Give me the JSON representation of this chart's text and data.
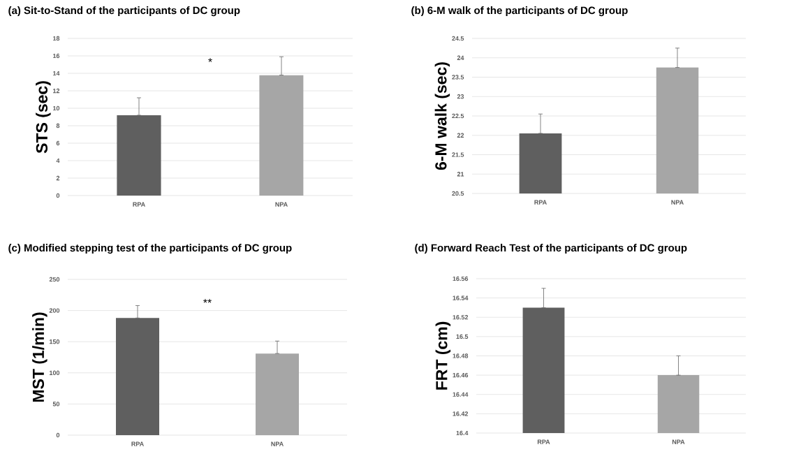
{
  "chart_data": [
    {
      "type": "bar",
      "title": "(a) Sit-to-Stand of the participants of DC group",
      "ylabel": "STS (sec)",
      "categories": [
        "RPA",
        "NPA"
      ],
      "values": [
        9.2,
        13.8
      ],
      "errors": [
        [
          9.2,
          11.2
        ],
        [
          13.8,
          15.9
        ]
      ],
      "colors": [
        "#5f5f5f",
        "#a6a6a6"
      ],
      "ylim": [
        0,
        18
      ],
      "yticks": [
        0,
        2,
        4,
        6,
        8,
        10,
        12,
        14,
        16,
        18
      ],
      "grid": "y",
      "annotations": [
        "*"
      ]
    },
    {
      "type": "bar",
      "title": "(b) 6-M walk of the participants of DC group",
      "ylabel": "6-M walk (sec)",
      "categories": [
        "RPA",
        "NPA"
      ],
      "values": [
        22.05,
        23.75
      ],
      "errors": [
        [
          22.05,
          22.55
        ],
        [
          23.75,
          24.25
        ]
      ],
      "colors": [
        "#5f5f5f",
        "#a6a6a6"
      ],
      "ylim": [
        20.5,
        24.5
      ],
      "yticks": [
        20.5,
        21,
        21.5,
        22,
        22.5,
        23,
        23.5,
        24,
        24.5
      ],
      "grid": "y"
    },
    {
      "type": "bar",
      "title": "(c) Modified stepping test  of the participants of DC group",
      "ylabel": "MST (1/min)",
      "categories": [
        "RPA",
        "NPA"
      ],
      "values": [
        188,
        131
      ],
      "errors": [
        [
          188,
          208
        ],
        [
          131,
          151
        ]
      ],
      "colors": [
        "#5f5f5f",
        "#a6a6a6"
      ],
      "ylim": [
        0,
        250
      ],
      "yticks": [
        0,
        50,
        100,
        150,
        200,
        250
      ],
      "grid": "y",
      "annotations": [
        "**"
      ]
    },
    {
      "type": "bar",
      "title": "(d) Forward Reach Test  of the participants of DC group",
      "ylabel": "FRT (cm)",
      "categories": [
        "RPA",
        "NPA"
      ],
      "values": [
        16.53,
        16.46
      ],
      "errors": [
        [
          16.53,
          16.55
        ],
        [
          16.46,
          16.48
        ]
      ],
      "colors": [
        "#5f5f5f",
        "#a6a6a6"
      ],
      "ylim": [
        16.4,
        16.56
      ],
      "yticks": [
        16.4,
        16.42,
        16.44,
        16.46,
        16.48,
        16.5,
        16.52,
        16.54,
        16.56
      ],
      "grid": "y"
    }
  ]
}
